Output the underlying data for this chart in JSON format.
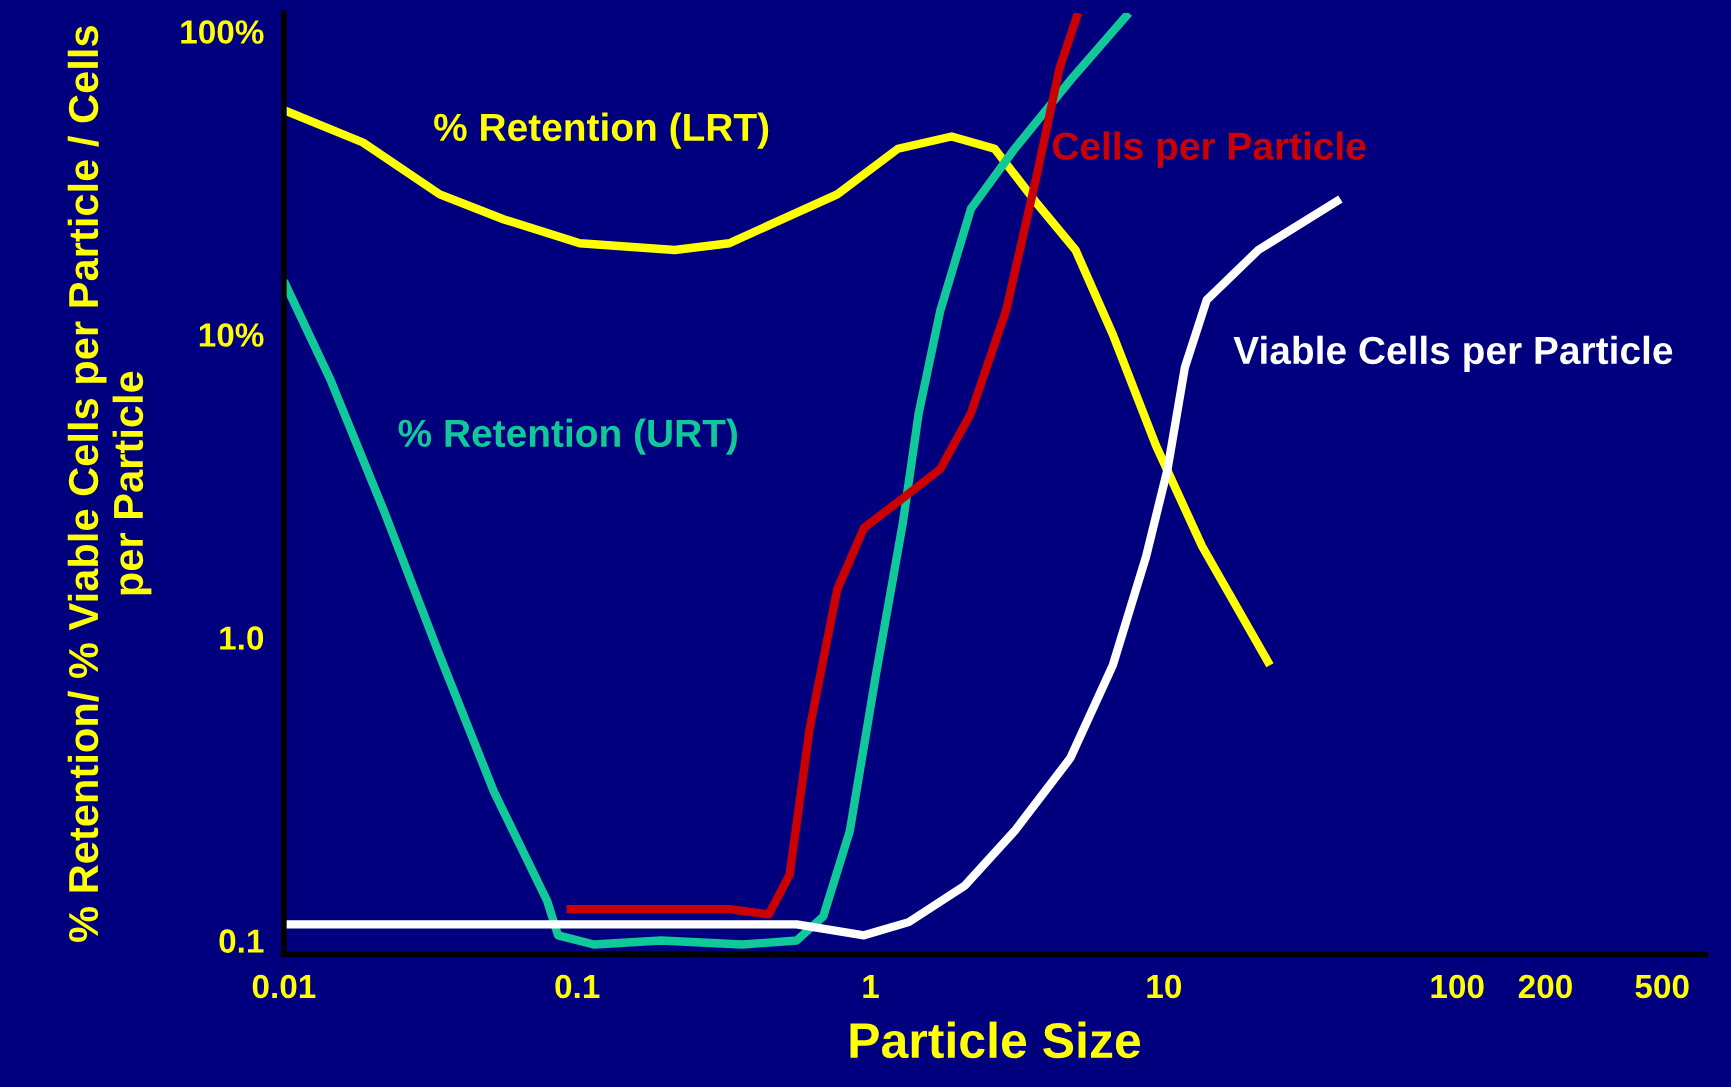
{
  "chart_data": {
    "type": "line",
    "xlabel": "Particle Size",
    "ylabel": "% Retention/ % Viable Cells per Particle / Cells per Particle",
    "log": "xy",
    "xlim": [
      0.01,
      700
    ],
    "ylim": [
      0.09,
      115
    ],
    "xticks": [
      0.01,
      0.1,
      1,
      10,
      100,
      200,
      500
    ],
    "yticks": [
      {
        "value": 100,
        "label": "100%"
      },
      {
        "value": 10,
        "label": "10%"
      },
      {
        "value": 1,
        "label": "1.0"
      },
      {
        "value": 0.1,
        "label": "0.1"
      }
    ],
    "grid": false,
    "legend": false,
    "marker": "none",
    "line_style": "solid",
    "series": [
      {
        "name": "% Retention (LRT)",
        "color": "#ffff00",
        "x": [
          0.01,
          0.0186,
          0.034,
          0.056,
          0.102,
          0.215,
          0.33,
          0.77,
          1.24,
          1.89,
          2.65,
          3.7,
          5.0,
          6.7,
          9.4,
          13.5,
          23
        ],
        "values": [
          55,
          43,
          29,
          24,
          20,
          19,
          20,
          29,
          41,
          45,
          41,
          27,
          19,
          10,
          4.3,
          2.0,
          0.81
        ]
      },
      {
        "name": "% Retention (URT)",
        "color": "#10c898",
        "x": [
          0.01,
          0.0144,
          0.022,
          0.034,
          0.052,
          0.079,
          0.086,
          0.114,
          0.193,
          0.365,
          0.56,
          0.69,
          0.85,
          1.04,
          1.29,
          1.46,
          1.73,
          2.2,
          3.1,
          4.8,
          7.6
        ],
        "values": [
          15,
          7.1,
          2.6,
          0.87,
          0.31,
          0.135,
          0.104,
          0.097,
          0.1,
          0.097,
          0.1,
          0.12,
          0.23,
          0.74,
          2.4,
          5.5,
          12,
          26,
          41,
          69,
          115
        ]
      },
      {
        "name": "Cells per Particle",
        "color": "#cc0000",
        "x": [
          0.092,
          0.14,
          0.33,
          0.45,
          0.53,
          0.62,
          0.77,
          0.95,
          1.24,
          1.73,
          2.2,
          2.9,
          3.7,
          4.4,
          5.1
        ],
        "values": [
          0.127,
          0.127,
          0.127,
          0.122,
          0.165,
          0.5,
          1.44,
          2.3,
          2.8,
          3.6,
          5.5,
          12,
          34,
          75,
          115
        ]
      },
      {
        "name": "Viable Cells per Particle",
        "color": "#ffffff",
        "x": [
          0.01,
          0.079,
          0.56,
          0.95,
          1.35,
          2.1,
          3.1,
          4.8,
          6.7,
          8.7,
          10.3,
          11.8,
          14,
          21,
          40
        ],
        "values": [
          0.113,
          0.113,
          0.113,
          0.104,
          0.115,
          0.152,
          0.23,
          0.4,
          0.81,
          1.85,
          3.6,
          7.8,
          13,
          19,
          28
        ]
      }
    ]
  }
}
